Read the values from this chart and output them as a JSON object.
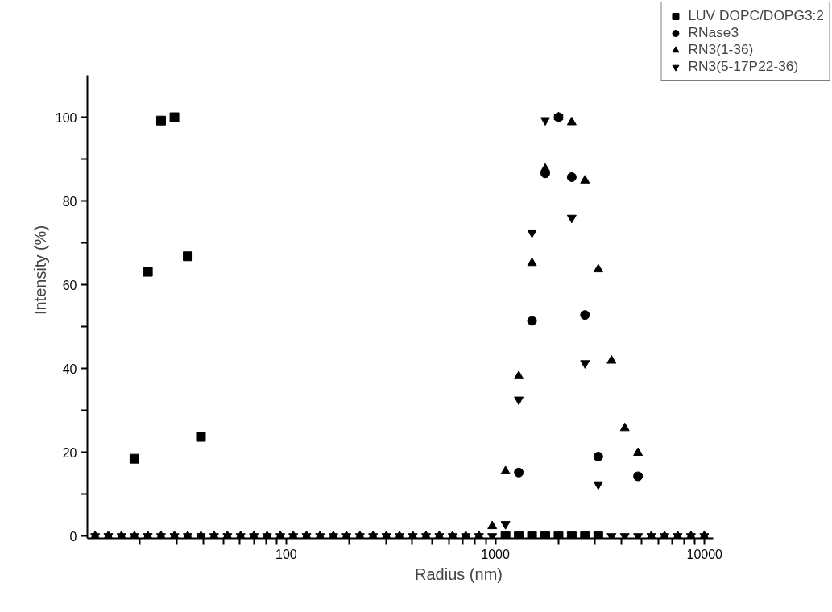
{
  "chart_data": {
    "type": "scatter",
    "xlabel": "Radius (nm)",
    "ylabel": "Intensity (%)",
    "log": "x",
    "x": [
      12.2,
      14.1,
      16.3,
      18.8,
      21.8,
      25.2,
      29.2,
      33.8,
      39.1,
      45.2,
      52.3,
      60.5,
      70.0,
      81.0,
      93.7,
      108,
      125,
      145,
      168,
      194,
      225,
      260,
      301,
      348,
      403,
      466,
      539,
      624,
      722,
      835,
      966,
      1118,
      1294,
      1497,
      1732,
      2004,
      2318,
      2682,
      3104,
      3591,
      4155,
      4807,
      5562,
      6435,
      7445,
      8614,
      9967
    ],
    "series": [
      {
        "name": "LUV DOPC/DOPG3:2",
        "color": "#000000",
        "marker": "square",
        "values": [
          null,
          null,
          null,
          18.5,
          63.1,
          99.2,
          100,
          66.8,
          23.7,
          null,
          null,
          null,
          null,
          null,
          null,
          null,
          null,
          null,
          null,
          null,
          null,
          null,
          null,
          null,
          null,
          null,
          null,
          null,
          null,
          null,
          null,
          0,
          0,
          0,
          0,
          0,
          0,
          0,
          0,
          null,
          null,
          null,
          null,
          null,
          null,
          null,
          null
        ]
      },
      {
        "name": "RNase3",
        "color": "#000000",
        "marker": "circle",
        "values": [
          null,
          null,
          null,
          null,
          null,
          null,
          null,
          null,
          null,
          null,
          null,
          null,
          null,
          null,
          null,
          null,
          null,
          null,
          null,
          null,
          null,
          null,
          null,
          null,
          null,
          null,
          null,
          null,
          null,
          null,
          null,
          null,
          15.2,
          51.4,
          86.6,
          100,
          85.7,
          52.8,
          19.0,
          null,
          null,
          14.3,
          null,
          null,
          null,
          null,
          null
        ]
      },
      {
        "name": "RN3(1-36)",
        "color": "#000000",
        "marker": "triangle",
        "values": [
          0,
          0,
          0,
          0,
          0,
          0,
          0,
          0,
          0,
          0,
          0,
          0,
          0,
          0,
          0,
          0,
          0,
          0,
          0,
          0,
          0,
          0,
          0,
          0,
          0,
          0,
          0,
          0,
          0,
          0,
          2.4,
          15.5,
          38.2,
          65.2,
          87.7,
          100,
          98.8,
          84.9,
          63.7,
          41.9,
          25.8,
          19.9,
          0,
          0,
          0,
          0,
          0
        ]
      },
      {
        "name": "RN3(5-17P22-36)",
        "color": "#000000",
        "values": [
          0,
          0,
          0,
          0,
          0,
          0,
          0,
          0,
          0,
          0,
          0,
          0,
          0,
          0,
          0,
          0,
          0,
          0,
          0,
          0,
          0,
          0,
          0,
          0,
          0,
          0,
          0,
          0,
          0,
          0,
          0,
          2.9,
          32.6,
          72.5,
          99.3,
          100,
          76.0,
          41.3,
          12.4,
          0,
          0,
          0,
          0,
          0,
          0,
          0,
          0
        ]
      }
    ],
    "xlim": [
      11.2,
      11000
    ],
    "xticks": [
      {
        "value": 20,
        "label": null
      },
      {
        "value": 30,
        "label": null
      },
      {
        "value": 40,
        "label": null
      },
      {
        "value": 50,
        "label": null
      },
      {
        "value": 60,
        "label": null
      },
      {
        "value": 70,
        "label": null
      },
      {
        "value": 80,
        "label": null
      },
      {
        "value": 90,
        "label": null
      },
      100,
      {
        "value": 200,
        "label": null
      },
      {
        "value": 300,
        "label": null
      },
      {
        "value": 400,
        "label": null
      },
      {
        "value": 500,
        "label": null
      },
      {
        "value": 600,
        "label": null
      },
      {
        "value": 700,
        "label": null
      },
      {
        "value": 800,
        "label": null
      },
      {
        "value": 900,
        "label": null
      },
      1000,
      {
        "value": 2000,
        "label": null
      },
      {
        "value": 3000,
        "label": null
      },
      {
        "value": 4000,
        "label": null
      },
      {
        "value": 5000,
        "label": null
      },
      {
        "value": 6000,
        "label": null
      },
      {
        "value": 7000,
        "label": null
      },
      {
        "value": 8000,
        "label": null
      },
      {
        "value": 9000,
        "label": null
      },
      10000
    ],
    "ylim": [
      -0.5,
      110
    ],
    "yticks": [
      0,
      {
        "value": 10,
        "label": null
      },
      20,
      {
        "value": 30,
        "label": null
      },
      40,
      {
        "value": 50,
        "label": null
      },
      60,
      {
        "value": 70,
        "label": null
      },
      80,
      {
        "value": 90,
        "label": null
      },
      100
    ],
    "grid": false,
    "legend": "top right"
  }
}
